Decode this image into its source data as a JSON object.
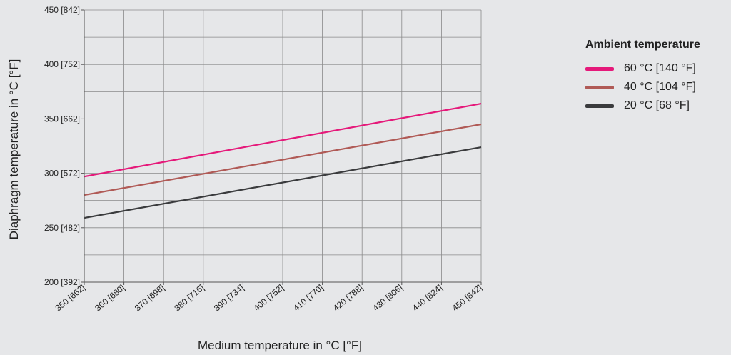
{
  "chart_data": {
    "type": "line",
    "xlabel": "Medium temperature in °C [°F]",
    "ylabel": "Diaphragm temperature in °C [°F]",
    "x_ticks": [
      {
        "value": 350,
        "label": "350 [662]"
      },
      {
        "value": 360,
        "label": "360 [680]"
      },
      {
        "value": 370,
        "label": "370 [698]"
      },
      {
        "value": 380,
        "label": "380 [716]"
      },
      {
        "value": 390,
        "label": "390 [734]"
      },
      {
        "value": 400,
        "label": "400 [752]"
      },
      {
        "value": 410,
        "label": "410 [770]"
      },
      {
        "value": 420,
        "label": "420 [788]"
      },
      {
        "value": 430,
        "label": "430 [806]"
      },
      {
        "value": 440,
        "label": "440 [824]"
      },
      {
        "value": 450,
        "label": "450 [842]"
      }
    ],
    "y_ticks": [
      {
        "value": 200,
        "label": "200 [392]"
      },
      {
        "value": 250,
        "label": "250 [482]"
      },
      {
        "value": 300,
        "label": "300 [572]"
      },
      {
        "value": 350,
        "label": "350 [662]"
      },
      {
        "value": 400,
        "label": "400 [752]"
      },
      {
        "value": 450,
        "label": "450 [842]"
      }
    ],
    "xlim": [
      350,
      450
    ],
    "ylim": [
      200,
      450
    ],
    "y_minor_step": 25,
    "grid": true,
    "legend_position": "right",
    "legend_title": "Ambient temperature",
    "series": [
      {
        "name": "60 °C [140 °F]",
        "color": "#e5197a",
        "x": [
          350,
          450
        ],
        "y": [
          297,
          364
        ]
      },
      {
        "name": "40 °C [104 °F]",
        "color": "#b05a56",
        "x": [
          350,
          450
        ],
        "y": [
          280,
          345
        ]
      },
      {
        "name": "20 °C [68 °F]",
        "color": "#3a3b3d",
        "x": [
          350,
          450
        ],
        "y": [
          259,
          324
        ]
      }
    ]
  }
}
